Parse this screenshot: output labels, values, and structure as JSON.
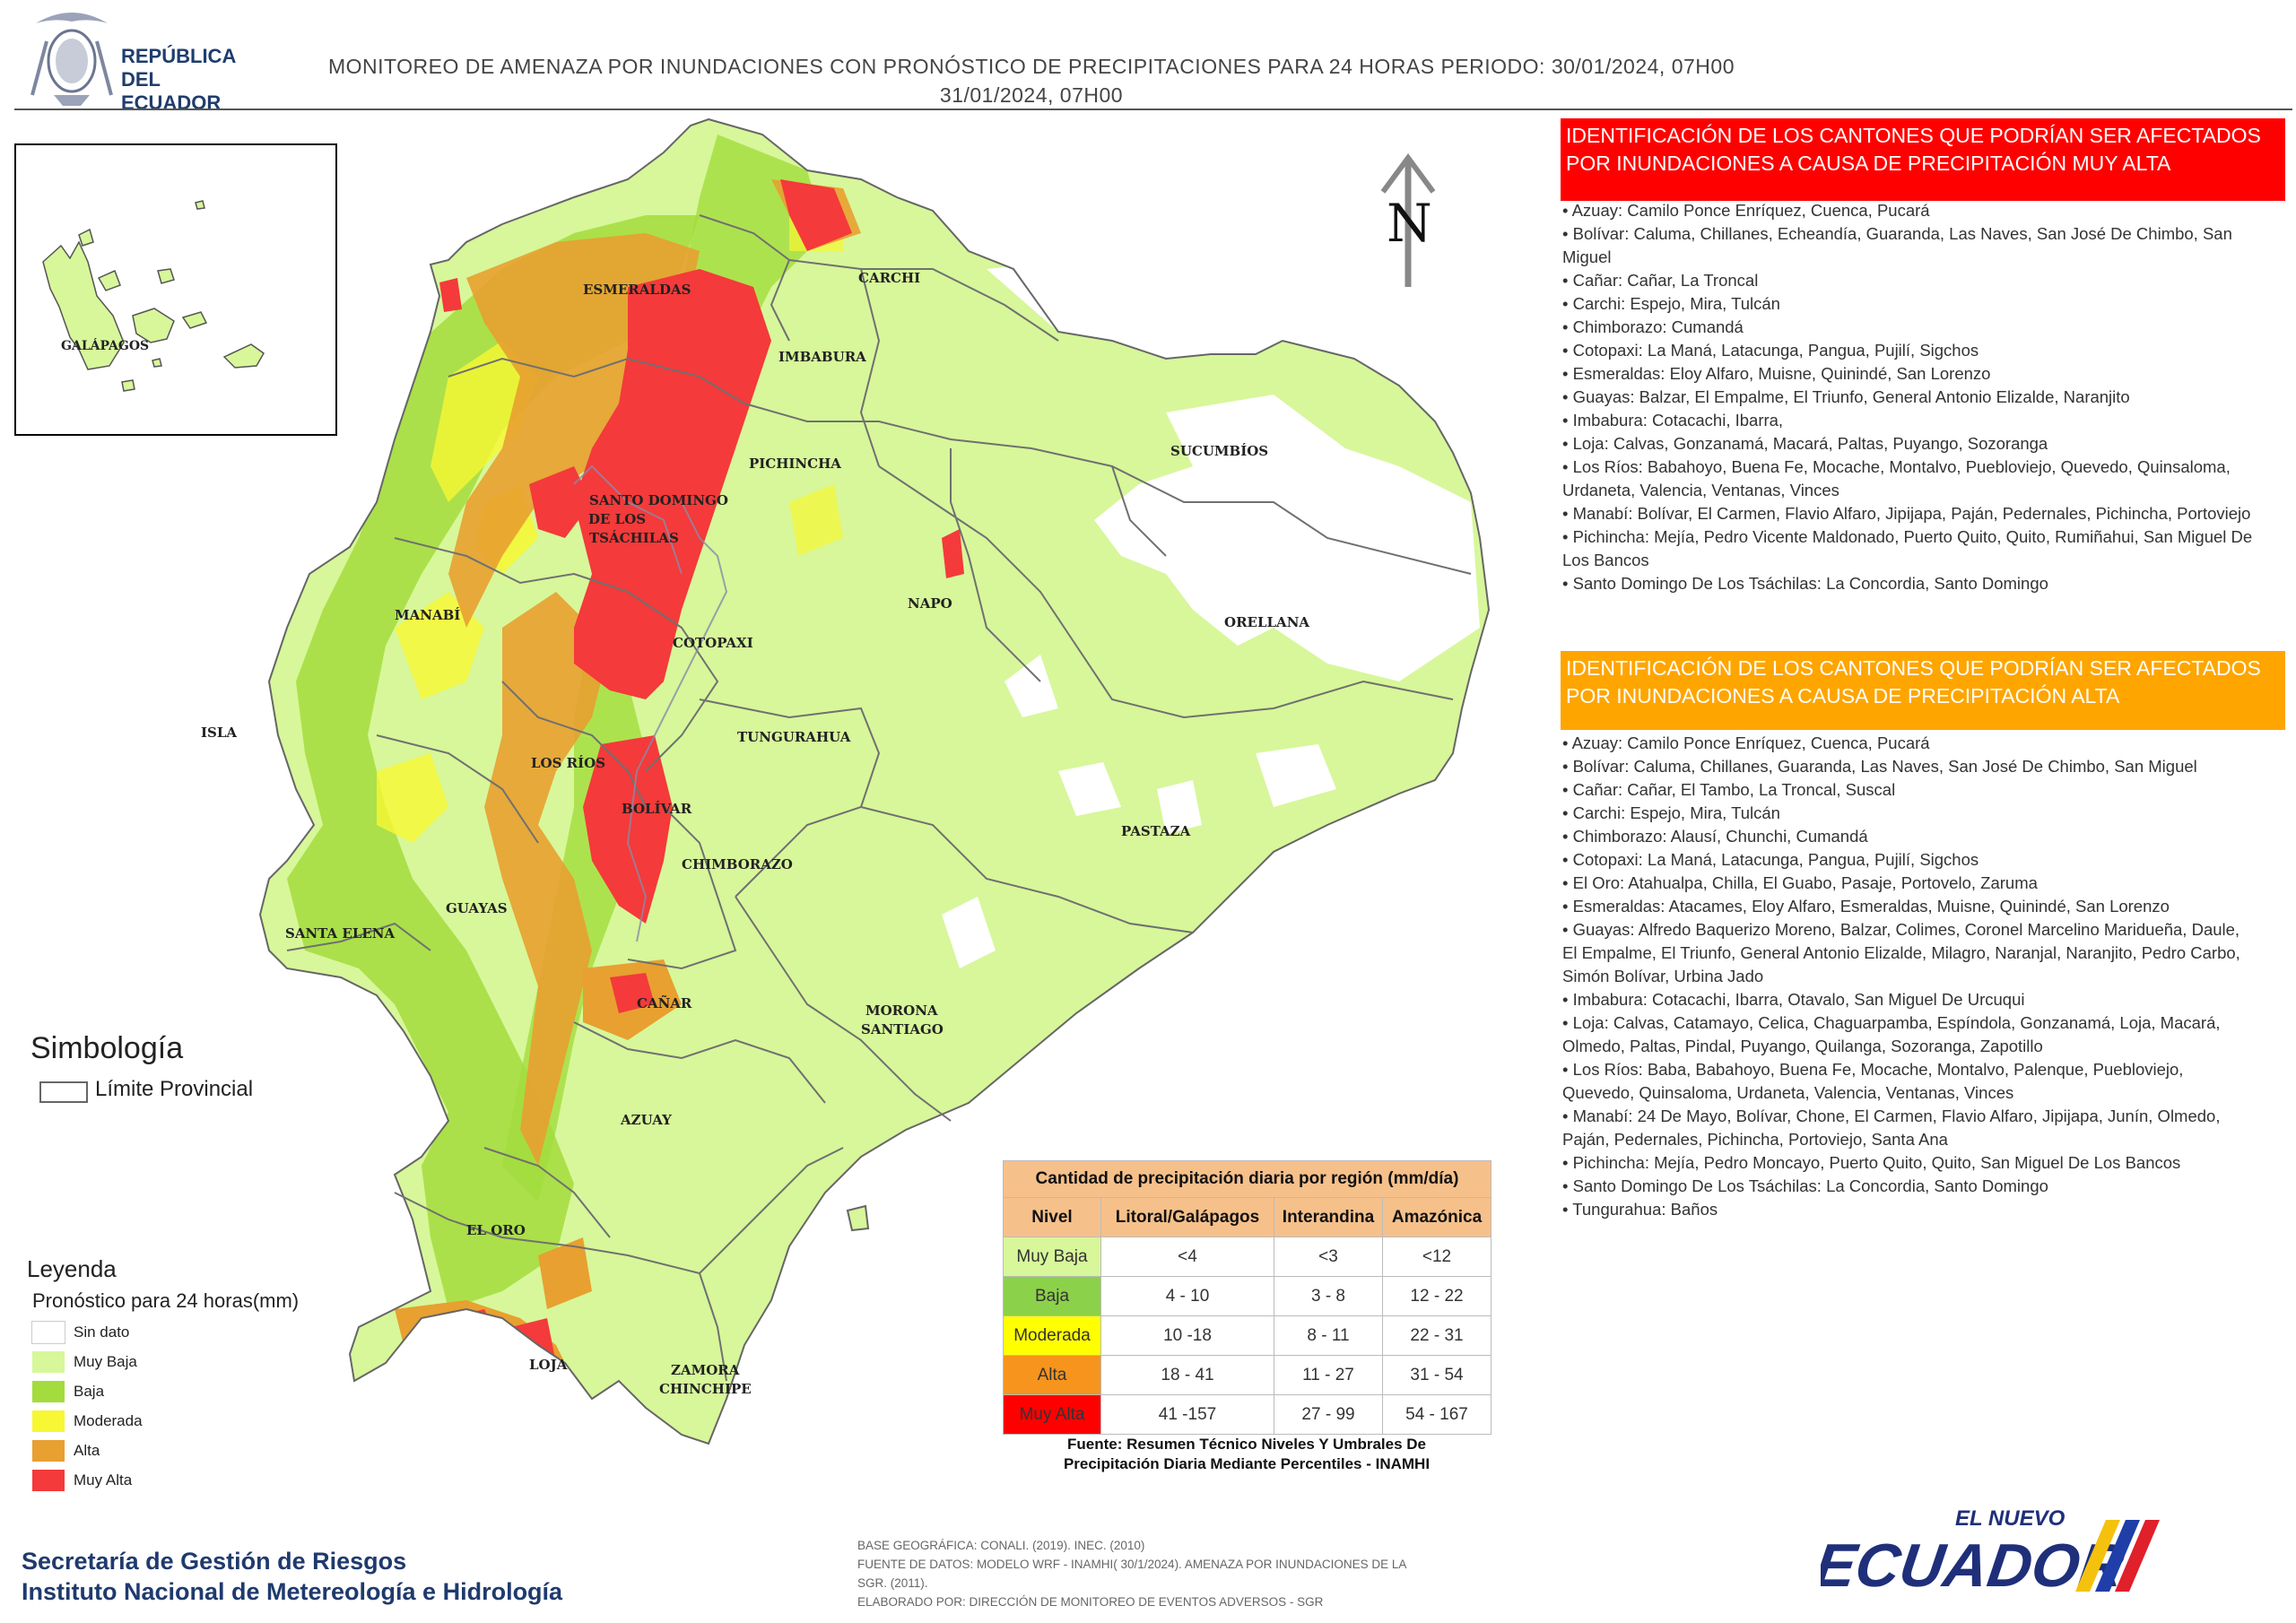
{
  "header": {
    "title_line1": "MONITOREO DE AMENAZA POR INUNDACIONES  CON PRONÓSTICO DE  PRECIPITACIONES PARA 24 HORAS  PERIODO: 30/01/2024, 07H00",
    "title_line2": "31/01/2024, 07H00",
    "logo_line1": "REPÚBLICA",
    "logo_line2": "DEL ECUADOR"
  },
  "map": {
    "north_letter": "N",
    "inset_label": "GALÁPAGOS",
    "isla_label": "ISLA",
    "province_labels": [
      "CARCHI",
      "ESMERALDAS",
      "IMBABURA",
      "SUCUMBÍOS",
      "PICHINCHA",
      "SANTO DOMINGO",
      "DE LOS",
      "TSÁCHILAS",
      "MANABÍ",
      "NAPO",
      "ORELLANA",
      "COTOPAXI",
      "TUNGURAHUA",
      "LOS RÍOS",
      "BOLÍVAR",
      "PASTAZA",
      "CHIMBORAZO",
      "SANTA ELENA",
      "GUAYAS",
      "CAÑAR",
      "MORONA",
      "SANTIAGO",
      "AZUAY",
      "EL ORO",
      "LOJA",
      "ZAMORA",
      "CHINCHIPE"
    ]
  },
  "panel_muy_alta": {
    "heading": "IDENTIFICACIÓN DE LOS CANTONES QUE PODRÍAN SER AFECTADOS POR INUNDACIONES  A CAUSA DE PRECIPITACIÓN MUY ALTA",
    "items": [
      "• Azuay: Camilo Ponce Enríquez, Cuenca, Pucará",
      "• Bolívar: Caluma, Chillanes, Echeandía, Guaranda, Las Naves, San José De Chimbo, San Miguel",
      "• Cañar: Cañar, La Troncal",
      "• Carchi: Espejo, Mira, Tulcán",
      "• Chimborazo: Cumandá",
      "• Cotopaxi: La Maná, Latacunga, Pangua, Pujilí, Sigchos",
      "• Esmeraldas: Eloy Alfaro, Muisne, Quinindé, San Lorenzo",
      "• Guayas: Balzar, El Empalme, El Triunfo, General Antonio Elizalde, Naranjito",
      "• Imbabura: Cotacachi, Ibarra,",
      "• Loja: Calvas, Gonzanamá, Macará, Paltas, Puyango, Sozoranga",
      "• Los Ríos: Babahoyo, Buena Fe, Mocache, Montalvo, Puebloviejo, Quevedo, Quinsaloma, Urdaneta, Valencia, Ventanas, Vinces",
      "• Manabí: Bolívar, El Carmen, Flavio Alfaro, Jipijapa, Paján, Pedernales, Pichincha, Portoviejo",
      "• Pichincha: Mejía, Pedro Vicente Maldonado, Puerto Quito, Quito, Rumiñahui, San Miguel De Los Bancos",
      "• Santo Domingo De Los Tsáchilas: La Concordia, Santo Domingo"
    ]
  },
  "panel_alta": {
    "heading": "IDENTIFICACIÓN DE LOS CANTONES QUE  PODRÍAN SER AFECTADOS POR INUNDACIONES  A CAUSA DE PRECIPITACIÓN  ALTA",
    "items": [
      "• Azuay: Camilo Ponce Enríquez, Cuenca, Pucará",
      "• Bolívar: Caluma, Chillanes, Guaranda, Las Naves, San José De Chimbo, San Miguel",
      "• Cañar: Cañar, El Tambo, La Troncal, Suscal",
      "• Carchi: Espejo, Mira, Tulcán",
      "• Chimborazo: Alausí, Chunchi, Cumandá",
      "• Cotopaxi: La Maná, Latacunga, Pangua, Pujilí, Sigchos",
      "• El Oro: Atahualpa, Chilla, El Guabo, Pasaje, Portovelo, Zaruma",
      "• Esmeraldas: Atacames, Eloy Alfaro, Esmeraldas, Muisne, Quinindé, San Lorenzo",
      "• Guayas: Alfredo Baquerizo Moreno, Balzar, Colimes, Coronel Marcelino Maridueña, Daule, El Empalme, El Triunfo, General Antonio Elizalde, Milagro, Naranjal, Naranjito, Pedro Carbo, Simón Bolívar, Urbina Jado",
      "• Imbabura: Cotacachi, Ibarra, Otavalo, San Miguel De Urcuqui",
      "• Loja: Calvas, Catamayo, Celica, Chaguarpamba, Espíndola, Gonzanamá, Loja, Macará, Olmedo, Paltas, Pindal, Puyango, Quilanga, Sozoranga, Zapotillo",
      "• Los Ríos: Baba, Babahoyo, Buena Fe, Mocache, Montalvo, Palenque, Puebloviejo, Quevedo, Quinsaloma, Urdaneta, Valencia, Ventanas, Vinces",
      "• Manabí: 24 De Mayo, Bolívar, Chone, El Carmen, Flavio Alfaro, Jipijapa, Junín, Olmedo, Paján, Pedernales, Pichincha, Portoviejo, Santa Ana",
      "• Pichincha: Mejía, Pedro Moncayo, Puerto Quito, Quito, San Miguel De Los Bancos",
      "• Santo Domingo De Los Tsáchilas: La Concordia, Santo Domingo",
      "• Tungurahua: Baños"
    ]
  },
  "simbologia": {
    "title": "Simbología",
    "limite_label": "Límite Provincial"
  },
  "leyenda": {
    "title": "Leyenda",
    "subtitle": "Pronóstico para 24 horas(mm)",
    "items": [
      {
        "label": "Sin dato",
        "color": "#ffffff"
      },
      {
        "label": "Muy Baja",
        "color": "#d7f79a"
      },
      {
        "label": "Baja",
        "color": "#a3dc3c"
      },
      {
        "label": "Moderada",
        "color": "#f7f733"
      },
      {
        "label": "Alta",
        "color": "#e8a030"
      },
      {
        "label": "Muy Alta",
        "color": "#f43a3a"
      }
    ]
  },
  "threshold_table": {
    "title": "Cantidad de precipitación diaria por región (mm/día)",
    "headers": [
      "Nivel",
      "Litoral/Galápagos",
      "Interandina",
      "Amazónica"
    ],
    "rows": [
      {
        "level": "Muy Baja",
        "color": "#d7f79a",
        "litoral": "<4",
        "interandina": "<3",
        "amazonica": "<12"
      },
      {
        "level": "Baja",
        "color": "#8bd14a",
        "litoral": "4 - 10",
        "interandina": "3 - 8",
        "amazonica": "12 - 22"
      },
      {
        "level": "Moderada",
        "color": "#ffff00",
        "litoral": "10 -18",
        "interandina": "8 - 11",
        "amazonica": "22 - 31"
      },
      {
        "level": "Alta",
        "color": "#f7941d",
        "litoral": "18 - 41",
        "interandina": "11 - 27",
        "amazonica": "31 - 54"
      },
      {
        "level": "Muy Alta",
        "color": "#ff0000",
        "litoral": "41 -157",
        "interandina": "27 - 99",
        "amazonica": "54 - 167"
      }
    ],
    "source_line1": "Fuente: Resumen Técnico Niveles Y Umbrales De",
    "source_line2": "Precipitación Diaria Mediante Percentiles - INAMHI"
  },
  "footer": {
    "org_line1": "Secretaría de Gestión de Riesgos",
    "org_line2": "Instituto Nacional de Metereología e Hidrología",
    "note_line1": "BASE GEOGRÁFICA: CONALI. (2019). INEC. (2010)",
    "note_line2": "FUENTE DE DATOS: MODELO WRF - INAMHI( 30/1/2024).  AMENAZA POR INUNDACIONES DE LA",
    "note_line3": "SGR. (2011).",
    "note_line4": "ELABORADO POR: DIRECCIÓN DE MONITOREO DE EVENTOS ADVERSOS - SGR",
    "brand_small": "EL NUEVO",
    "brand_big": "ECUADOR"
  }
}
